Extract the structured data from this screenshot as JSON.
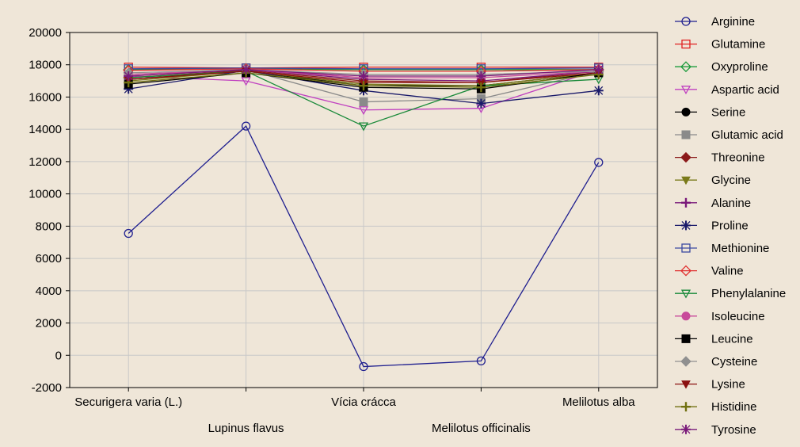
{
  "chart_data": {
    "type": "line",
    "categories": [
      "Securigera varia (L.)",
      "Lupinus flavus",
      "Vícia crácca",
      "Melilotus officinalis",
      "Melilotus  alba"
    ],
    "ylim": [
      -2000,
      20000
    ],
    "yticks": [
      20000,
      18000,
      16000,
      14000,
      12000,
      10000,
      8000,
      6000,
      4000,
      2000,
      0,
      -2000
    ],
    "grid": true,
    "legend_position": "right",
    "series": [
      {
        "name": "Arginine",
        "color": "#1f1f8f",
        "marker": "circle-open",
        "values": [
          7550,
          14200,
          -700,
          -350,
          11950
        ]
      },
      {
        "name": "Glutamine",
        "color": "#e02020",
        "marker": "square-open",
        "values": [
          17850,
          17800,
          17850,
          17850,
          17850
        ]
      },
      {
        "name": "Oxyproline",
        "color": "#1a9a3a",
        "marker": "diamond-open",
        "values": [
          17700,
          17750,
          17700,
          17700,
          17700
        ]
      },
      {
        "name": "Aspartic acid",
        "color": "#c040c0",
        "marker": "triangle-down-open",
        "values": [
          17300,
          17000,
          15200,
          15300,
          17700
        ]
      },
      {
        "name": "Serine",
        "color": "#000000",
        "marker": "circle-filled",
        "values": [
          17100,
          17600,
          16700,
          16700,
          17500
        ]
      },
      {
        "name": "Glutamic acid",
        "color": "#8a8a8a",
        "marker": "square-filled",
        "values": [
          17400,
          17700,
          15700,
          15900,
          17600
        ]
      },
      {
        "name": "Threonine",
        "color": "#8b1a1a",
        "marker": "diamond-filled",
        "values": [
          17200,
          17650,
          17000,
          16900,
          17600
        ]
      },
      {
        "name": "Glycine",
        "color": "#7a7a1a",
        "marker": "triangle-down-filled",
        "values": [
          17000,
          17600,
          16800,
          16700,
          17500
        ]
      },
      {
        "name": "Alanine",
        "color": "#7a1a7a",
        "marker": "plus",
        "values": [
          17300,
          17700,
          17100,
          17000,
          17600
        ]
      },
      {
        "name": "Proline",
        "color": "#1a1a6a",
        "marker": "star",
        "values": [
          16500,
          17650,
          16400,
          15600,
          16400
        ]
      },
      {
        "name": "Methionine",
        "color": "#3a4aa0",
        "marker": "square-open",
        "values": [
          17750,
          17800,
          17750,
          17750,
          17800
        ]
      },
      {
        "name": "Valine",
        "color": "#e03030",
        "marker": "diamond-open",
        "values": [
          17650,
          17750,
          17600,
          17600,
          17700
        ]
      },
      {
        "name": "Phenylalanine",
        "color": "#1a8a3a",
        "marker": "triangle-down-open",
        "values": [
          17200,
          17600,
          14200,
          16700,
          17100
        ]
      },
      {
        "name": "Isoleucine",
        "color": "#c84a9a",
        "marker": "circle-filled",
        "values": [
          17400,
          17700,
          17200,
          17200,
          17600
        ]
      },
      {
        "name": "Leucine",
        "color": "#000000",
        "marker": "square-filled",
        "values": [
          16800,
          17500,
          16600,
          16500,
          17500
        ]
      },
      {
        "name": "Cysteine",
        "color": "#909090",
        "marker": "diamond-filled",
        "values": [
          17500,
          17700,
          17400,
          17400,
          17600
        ]
      },
      {
        "name": "Lysine",
        "color": "#8b1010",
        "marker": "triangle-down-filled",
        "values": [
          17100,
          17600,
          16900,
          16900,
          17500
        ]
      },
      {
        "name": "Histidine",
        "color": "#707010",
        "marker": "plus",
        "values": [
          16900,
          17500,
          16700,
          16600,
          17400
        ]
      },
      {
        "name": "Tyrosine",
        "color": "#7a1a7a",
        "marker": "star",
        "values": [
          17300,
          17700,
          17300,
          17300,
          17700
        ]
      }
    ]
  }
}
